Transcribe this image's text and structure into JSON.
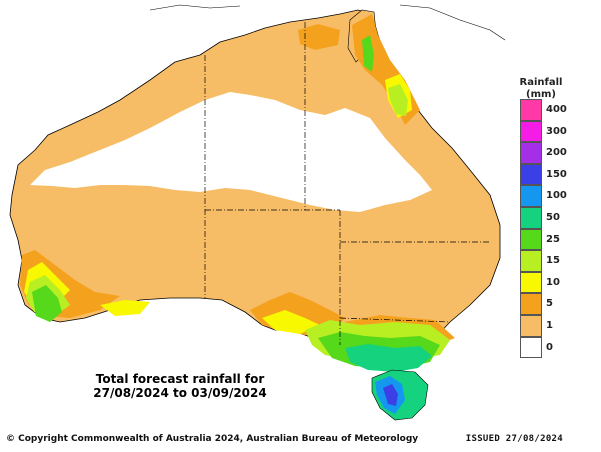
{
  "legend": {
    "title": "Rainfall",
    "unit": "(mm)",
    "levels": [
      {
        "label": "400",
        "color": "#ff3aa6"
      },
      {
        "label": "300",
        "color": "#f51de6"
      },
      {
        "label": "200",
        "color": "#a42fe6"
      },
      {
        "label": "150",
        "color": "#3a3fe6"
      },
      {
        "label": "100",
        "color": "#1597f0"
      },
      {
        "label": "50",
        "color": "#14d27e"
      },
      {
        "label": "25",
        "color": "#56d81b"
      },
      {
        "label": "15",
        "color": "#b8ef23"
      },
      {
        "label": "10",
        "color": "#f8f800"
      },
      {
        "label": "5",
        "color": "#f4a21e"
      },
      {
        "label": "1",
        "color": "#f7bd66"
      },
      {
        "label": "0",
        "color": "#ffffff"
      }
    ]
  },
  "caption": {
    "line1": "Total forecast rainfall for",
    "line2": "27/08/2024 to 03/09/2024"
  },
  "footer": {
    "copyright": "© Copyright Commonwealth of Australia 2024, Australian Bureau of Meteorology",
    "issued": "ISSUED 27/08/2024"
  }
}
